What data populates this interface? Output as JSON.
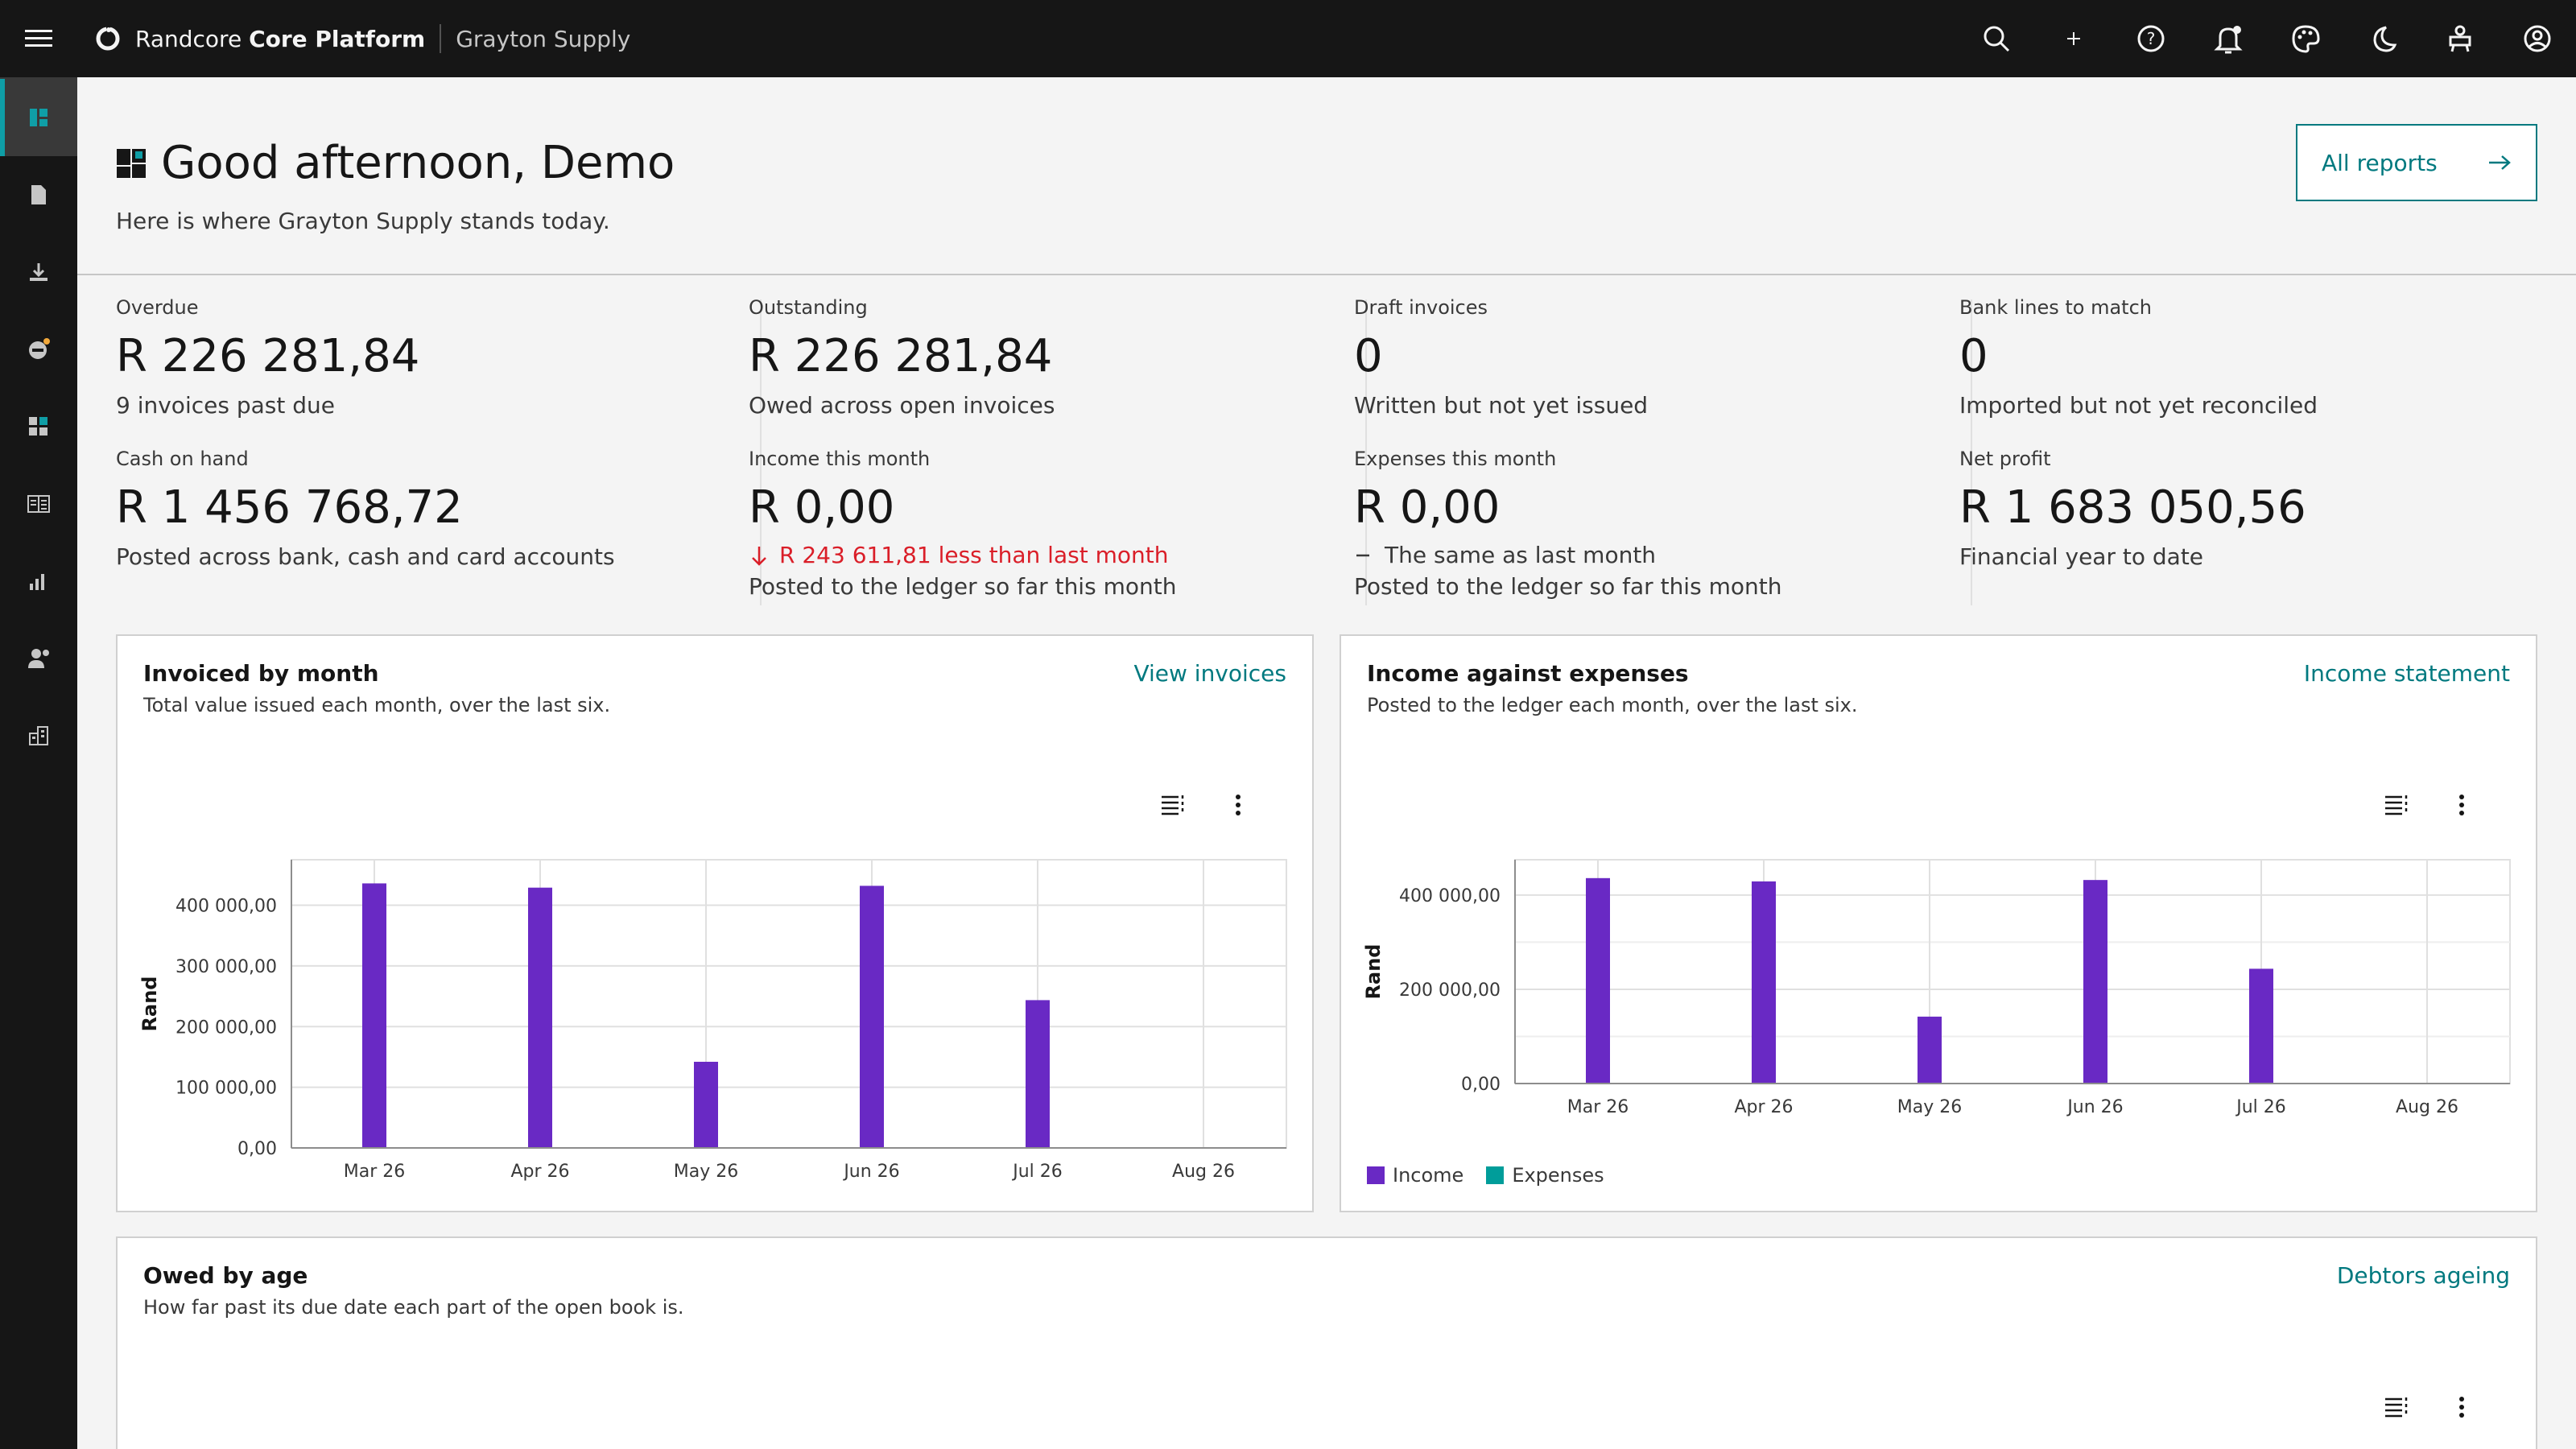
{
  "header": {
    "brand_prefix": "Randcore",
    "brand_bold": "Core Platform",
    "org_name": "Grayton Supply",
    "actions": [
      "search-icon",
      "add-icon",
      "help-icon",
      "notification-icon",
      "palette-icon",
      "dark-mode-icon",
      "switcher-icon",
      "user-avatar-icon"
    ]
  },
  "siderail": [
    "dashboard-icon",
    "document-icon",
    "download-icon",
    "switch-icon",
    "apps-icon",
    "table-icon",
    "chart-icon",
    "user-admin-icon",
    "building-icon"
  ],
  "hero": {
    "title": "Good afternoon, Demo",
    "subtitle": "Here is where Grayton Supply stands today.",
    "button": "All reports"
  },
  "kpis": {
    "overdue": {
      "label": "Overdue",
      "value": "R 226 281,84",
      "note": "9 invoices past due"
    },
    "outstanding": {
      "label": "Outstanding",
      "value": "R 226 281,84",
      "note": "Owed across open invoices"
    },
    "draft": {
      "label": "Draft invoices",
      "value": "0",
      "note": "Written but not yet issued"
    },
    "bank": {
      "label": "Bank lines to match",
      "value": "0",
      "note": "Imported but not yet reconciled"
    },
    "cash": {
      "label": "Cash on hand",
      "value": "R 1 456 768,72",
      "note": "Posted across bank, cash and card accounts"
    },
    "income": {
      "label": "Income this month",
      "value": "R 0,00",
      "delta": "R 243 611,81 less than last month",
      "note": "Posted to the ledger so far this month"
    },
    "expenses": {
      "label": "Expenses this month",
      "value": "R 0,00",
      "delta": "The same as last month",
      "note": "Posted to the ledger so far this month"
    },
    "profit": {
      "label": "Net profit",
      "value": "R 1 683 050,56",
      "note": "Financial year to date"
    }
  },
  "cards": {
    "invoiced": {
      "title": "Invoiced by month",
      "subtitle": "Total value issued each month, over the last six.",
      "link": "View invoices"
    },
    "income_expenses": {
      "title": "Income against expenses",
      "subtitle": "Posted to the ledger each month, over the last six.",
      "link": "Income statement"
    },
    "owed_age": {
      "title": "Owed by age",
      "subtitle": "How far past its due date each part of the open book is.",
      "link": "Debtors ageing"
    }
  },
  "chart_data": [
    {
      "type": "bar",
      "title": "Invoiced by month",
      "categories": [
        "Mar 26",
        "Apr 26",
        "May 26",
        "Jun 26",
        "Jul 26",
        "Aug 26"
      ],
      "values": [
        436000,
        429000,
        142000,
        432000,
        243600,
        0
      ],
      "ylabel": "Rand",
      "ylim": [
        0,
        475000
      ],
      "yticks": [
        "0,00",
        "100 000,00",
        "200 000,00",
        "300 000,00",
        "400 000,00"
      ],
      "color": "#6929c4",
      "grid": true
    },
    {
      "type": "bar",
      "title": "Income against expenses",
      "categories": [
        "Mar 26",
        "Apr 26",
        "May 26",
        "Jun 26",
        "Jul 26",
        "Aug 26"
      ],
      "series": [
        {
          "name": "Income",
          "values": [
            436000,
            429000,
            142000,
            432000,
            243600,
            0
          ],
          "color": "#6929c4"
        },
        {
          "name": "Expenses",
          "values": [
            0,
            0,
            0,
            0,
            0,
            0
          ],
          "color": "#009d9a"
        }
      ],
      "ylabel": "Rand",
      "ylim": [
        0,
        475000
      ],
      "yticks": [
        "0,00",
        "200 000,00",
        "400 000,00"
      ],
      "legend": "bottom-left",
      "grid": true
    }
  ]
}
